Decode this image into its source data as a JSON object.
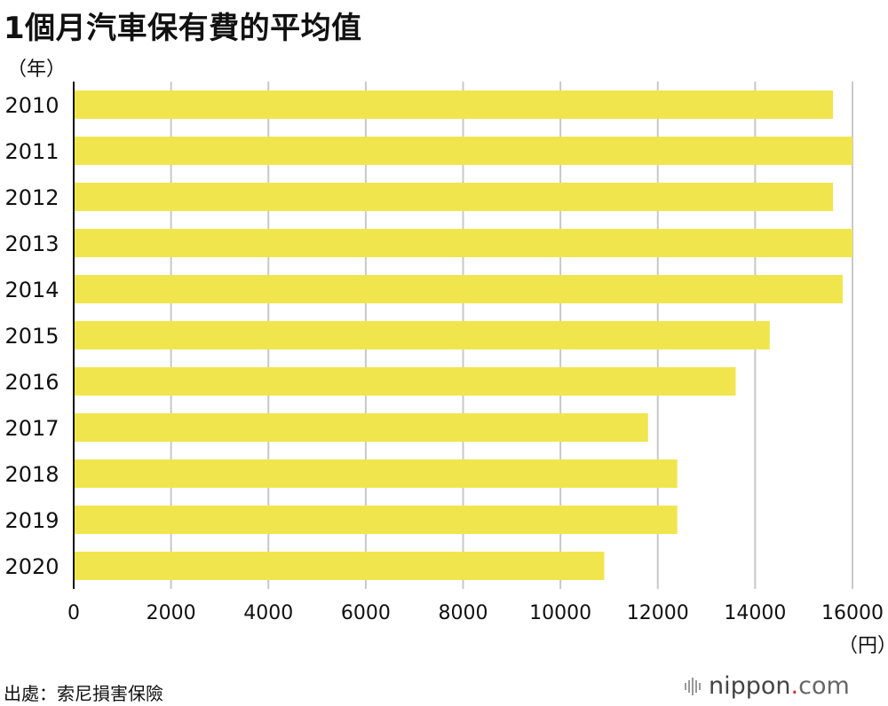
{
  "title": "1個月汽車保有費的平均值",
  "y_unit": "（年）",
  "x_unit": "（円）",
  "source": "出處：索尼損害保險",
  "brand": {
    "name": "nippon",
    "dot": ".",
    "tld": "com",
    "logo_icon": "sound-bars-icon"
  },
  "colors": {
    "bar": "#f1e54e",
    "grid": "#c8c8c8",
    "axis": "#111111"
  },
  "chart_data": {
    "type": "bar",
    "orientation": "horizontal",
    "categories": [
      "2010",
      "2011",
      "2012",
      "2013",
      "2014",
      "2015",
      "2016",
      "2017",
      "2018",
      "2019",
      "2020"
    ],
    "values": [
      15600,
      16000,
      15600,
      16000,
      15800,
      14300,
      13600,
      11800,
      12400,
      12400,
      10900
    ],
    "xlim": [
      0,
      16000
    ],
    "x_ticks": [
      0,
      2000,
      4000,
      6000,
      8000,
      10000,
      12000,
      14000,
      16000
    ],
    "grid": true
  }
}
